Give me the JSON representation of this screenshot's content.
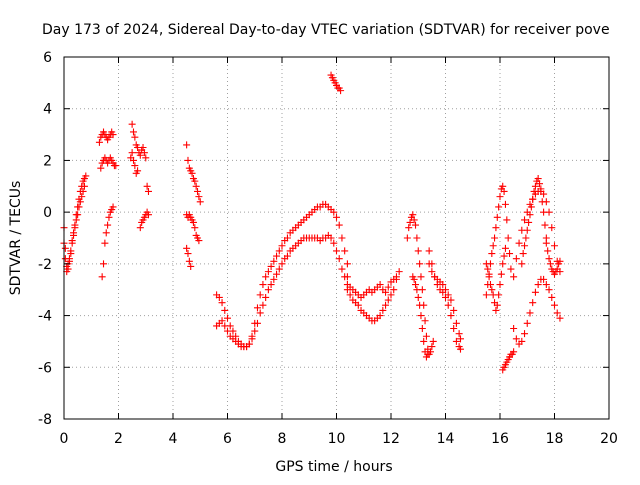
{
  "chart_data": {
    "type": "scatter",
    "title": "Day 173 of 2024, Sidereal Day-to-day VTEC variation (SDTVAR) for receiver pove",
    "xlabel": "GPS time / hours",
    "ylabel": "SDTVAR / TECUs",
    "xlim": [
      0,
      20
    ],
    "ylim": [
      -8,
      6
    ],
    "xticks": [
      0,
      2,
      4,
      6,
      8,
      10,
      12,
      14,
      16,
      18,
      20
    ],
    "xtick_labels": [
      "0",
      "2",
      "4",
      "6",
      "8",
      "10",
      "12",
      "14",
      "16",
      "18",
      "20"
    ],
    "yticks": [
      -8,
      -6,
      -4,
      -2,
      0,
      2,
      4,
      6
    ],
    "ytick_labels": [
      "-8",
      "-6",
      "-4",
      "-2",
      "0",
      "2",
      "4",
      "6"
    ],
    "grid": true,
    "marker": "+",
    "marker_color": "#ff0000",
    "series": [
      {
        "name": "segment-1",
        "x": [
          0.0,
          0.05,
          0.1,
          0.15,
          0.2,
          0.25,
          0.3,
          0.35,
          0.4,
          0.45,
          0.5,
          0.55,
          0.6,
          0.65,
          0.7,
          0.75,
          0.8
        ],
        "y": [
          -0.6,
          -1.4,
          -2.1,
          -2.2,
          -1.9,
          -1.6,
          -1.2,
          -0.8,
          -0.5,
          -0.1,
          0.2,
          0.5,
          0.8,
          1.0,
          1.2,
          1.3,
          1.4
        ]
      },
      {
        "name": "segment-2",
        "x": [
          0.0,
          0.05,
          0.1,
          0.15,
          0.2,
          0.25,
          0.3,
          0.35,
          0.4,
          0.45,
          0.5,
          0.55,
          0.6,
          0.65,
          0.7,
          0.75
        ],
        "y": [
          -1.2,
          -1.8,
          -2.3,
          -2.0,
          -1.8,
          -1.5,
          -1.1,
          -0.9,
          -0.6,
          -0.3,
          -0.1,
          0.2,
          0.4,
          0.6,
          0.8,
          1.0
        ]
      },
      {
        "name": "segment-3",
        "x": [
          1.4,
          1.45,
          1.5,
          1.55,
          1.6,
          1.65,
          1.7,
          1.75,
          1.8
        ],
        "y": [
          -2.5,
          -2.0,
          -1.2,
          -0.8,
          -0.5,
          -0.2,
          0.0,
          0.1,
          0.2
        ]
      },
      {
        "name": "segment-4",
        "x": [
          1.3,
          1.35,
          1.4,
          1.45,
          1.5,
          1.55,
          1.6,
          1.65,
          1.7,
          1.75,
          1.8
        ],
        "y": [
          2.7,
          2.9,
          3.0,
          3.1,
          3.0,
          2.9,
          2.8,
          2.9,
          3.0,
          3.1,
          3.0
        ]
      },
      {
        "name": "segment-5",
        "x": [
          1.35,
          1.4,
          1.45,
          1.5,
          1.55,
          1.6,
          1.65,
          1.7,
          1.75,
          1.8,
          1.85,
          1.9
        ],
        "y": [
          1.7,
          1.9,
          2.0,
          2.1,
          2.0,
          1.9,
          2.0,
          2.1,
          2.0,
          1.9,
          1.8,
          1.8
        ]
      },
      {
        "name": "segment-6",
        "x": [
          2.5,
          2.55,
          2.6,
          2.65,
          2.7,
          2.75,
          2.8,
          2.85,
          2.9,
          2.95,
          3.0,
          3.05,
          3.1
        ],
        "y": [
          3.4,
          3.1,
          2.9,
          2.6,
          2.5,
          2.3,
          2.2,
          2.4,
          2.5,
          2.3,
          2.1,
          1.0,
          0.8
        ]
      },
      {
        "name": "segment-7",
        "x": [
          2.45,
          2.5,
          2.55,
          2.6,
          2.65,
          2.7
        ],
        "y": [
          2.1,
          2.3,
          2.0,
          1.8,
          1.5,
          1.6
        ]
      },
      {
        "name": "segment-8",
        "x": [
          2.8,
          2.85,
          2.9,
          2.95,
          3.0,
          3.05,
          3.1
        ],
        "y": [
          -0.6,
          -0.4,
          -0.3,
          -0.2,
          -0.1,
          0.0,
          -0.1
        ]
      },
      {
        "name": "segment-9",
        "x": [
          4.5,
          4.55,
          4.6,
          4.65,
          4.7,
          4.75,
          4.8,
          4.85,
          4.9,
          4.95,
          5.0
        ],
        "y": [
          2.6,
          2.0,
          1.7,
          1.6,
          1.5,
          1.3,
          1.2,
          1.0,
          0.8,
          0.6,
          0.4
        ]
      },
      {
        "name": "segment-10",
        "x": [
          4.5,
          4.55,
          4.6,
          4.65,
          4.7,
          4.75,
          4.8,
          4.85,
          4.9,
          4.95
        ],
        "y": [
          -0.1,
          -0.2,
          -0.1,
          -0.2,
          -0.3,
          -0.4,
          -0.6,
          -0.9,
          -1.0,
          -1.1
        ]
      },
      {
        "name": "segment-11",
        "x": [
          4.5,
          4.55,
          4.6,
          4.65
        ],
        "y": [
          -1.4,
          -1.6,
          -1.9,
          -2.1
        ]
      },
      {
        "name": "segment-12",
        "x": [
          5.6,
          5.7,
          5.8,
          5.9,
          6.0,
          6.1,
          6.2,
          6.3,
          6.4,
          6.5,
          6.6,
          6.7,
          6.8,
          6.9,
          7.0,
          7.1,
          7.2,
          7.3,
          7.4,
          7.5,
          7.6,
          7.7,
          7.8,
          7.9,
          8.0,
          8.1,
          8.2,
          8.3,
          8.4,
          8.5,
          8.6,
          8.7,
          8.8,
          8.9,
          9.0,
          9.1,
          9.2,
          9.3,
          9.4,
          9.5,
          9.6,
          9.7,
          9.8,
          9.9,
          10.0,
          10.1,
          10.2,
          10.3,
          10.4
        ],
        "y": [
          -3.2,
          -3.3,
          -3.5,
          -3.8,
          -4.1,
          -4.4,
          -4.6,
          -4.8,
          -5.0,
          -5.1,
          -5.2,
          -5.2,
          -5.1,
          -4.8,
          -4.3,
          -3.7,
          -3.2,
          -2.8,
          -2.5,
          -2.3,
          -2.1,
          -1.9,
          -1.7,
          -1.5,
          -1.3,
          -1.1,
          -1.0,
          -0.8,
          -0.7,
          -0.6,
          -0.5,
          -0.4,
          -0.3,
          -0.2,
          -0.1,
          0.0,
          0.1,
          0.2,
          0.2,
          0.3,
          0.3,
          0.2,
          0.1,
          0.0,
          -0.2,
          -0.5,
          -1.0,
          -1.5,
          -2.0
        ]
      },
      {
        "name": "segment-13",
        "x": [
          5.6,
          5.7,
          5.8,
          5.9,
          6.0,
          6.1,
          6.2,
          6.3,
          6.4,
          6.5,
          6.6,
          6.7,
          6.8,
          6.9,
          7.0,
          7.1,
          7.2,
          7.3,
          7.4,
          7.5,
          7.6,
          7.7,
          7.8,
          7.9,
          8.0,
          8.1,
          8.2,
          8.3,
          8.4,
          8.5,
          8.6,
          8.7,
          8.8,
          8.9,
          9.0,
          9.1,
          9.2,
          9.3,
          9.4,
          9.5,
          9.6,
          9.7,
          9.8,
          9.9,
          10.0,
          10.1,
          10.2,
          10.3,
          10.4
        ],
        "y": [
          -4.4,
          -4.3,
          -4.2,
          -4.4,
          -4.6,
          -4.8,
          -4.9,
          -5.0,
          -5.1,
          -5.2,
          -5.2,
          -5.2,
          -5.1,
          -4.9,
          -4.6,
          -4.3,
          -3.9,
          -3.6,
          -3.3,
          -3.0,
          -2.8,
          -2.6,
          -2.4,
          -2.2,
          -2.0,
          -1.8,
          -1.7,
          -1.5,
          -1.4,
          -1.3,
          -1.2,
          -1.1,
          -1.0,
          -1.0,
          -1.0,
          -1.0,
          -1.0,
          -1.0,
          -1.1,
          -1.0,
          -1.0,
          -0.9,
          -1.0,
          -1.2,
          -1.5,
          -1.8,
          -2.2,
          -2.5,
          -2.8
        ]
      },
      {
        "name": "segment-14",
        "x": [
          10.4,
          10.5,
          10.6,
          10.7,
          10.8,
          10.9,
          11.0,
          11.1,
          11.2,
          11.3,
          11.4,
          11.5,
          11.6,
          11.7,
          11.8,
          11.9,
          12.0,
          12.1,
          12.2,
          12.3
        ],
        "y": [
          -3.0,
          -3.2,
          -3.4,
          -3.5,
          -3.6,
          -3.8,
          -3.9,
          -4.0,
          -4.1,
          -4.2,
          -4.2,
          -4.1,
          -4.0,
          -3.8,
          -3.6,
          -3.4,
          -3.2,
          -3.0,
          -2.6,
          -2.3
        ]
      },
      {
        "name": "segment-15",
        "x": [
          10.4,
          10.5,
          10.6,
          10.7,
          10.8,
          10.9,
          11.0,
          11.1,
          11.2,
          11.3,
          11.4,
          11.5,
          11.6,
          11.7,
          11.8,
          11.9,
          12.0,
          12.1,
          12.2
        ],
        "y": [
          -2.5,
          -2.9,
          -3.0,
          -3.1,
          -3.2,
          -3.3,
          -3.2,
          -3.1,
          -3.0,
          -3.1,
          -3.0,
          -2.9,
          -2.8,
          -3.0,
          -3.1,
          -2.9,
          -2.7,
          -2.6,
          -2.5
        ]
      },
      {
        "name": "segment-16",
        "x": [
          9.8,
          9.85,
          9.9,
          9.95,
          10.0,
          10.05,
          10.1,
          10.15
        ],
        "y": [
          5.3,
          5.2,
          5.1,
          5.0,
          4.9,
          4.8,
          4.8,
          4.7
        ]
      },
      {
        "name": "segment-17",
        "x": [
          12.6,
          12.65,
          12.7,
          12.75,
          12.8,
          12.85,
          12.9,
          12.95,
          13.0,
          13.05,
          13.1,
          13.15,
          13.2,
          13.25,
          13.3,
          13.35,
          13.4,
          13.45,
          13.5,
          13.55
        ],
        "y": [
          -1.0,
          -0.6,
          -0.4,
          -0.2,
          -0.1,
          -0.3,
          -0.5,
          -1.0,
          -1.5,
          -2.0,
          -2.5,
          -3.0,
          -3.6,
          -4.2,
          -4.8,
          -5.3,
          -5.5,
          -5.4,
          -5.2,
          -5.0
        ]
      },
      {
        "name": "segment-18",
        "x": [
          12.8,
          12.85,
          12.9,
          12.95,
          13.0,
          13.05,
          13.1,
          13.15,
          13.2,
          13.25,
          13.3,
          13.35
        ],
        "y": [
          -2.5,
          -2.6,
          -2.8,
          -3.0,
          -3.3,
          -3.6,
          -4.0,
          -4.5,
          -5.0,
          -5.4,
          -5.6,
          -5.5
        ]
      },
      {
        "name": "segment-19",
        "x": [
          13.4,
          13.5,
          13.6,
          13.7,
          13.8,
          13.9,
          14.0,
          14.1,
          14.2,
          14.3,
          14.4,
          14.5,
          14.55
        ],
        "y": [
          -1.5,
          -2.0,
          -2.5,
          -2.8,
          -3.0,
          -3.1,
          -3.3,
          -3.6,
          -4.0,
          -4.5,
          -5.0,
          -5.2,
          -5.3
        ]
      },
      {
        "name": "segment-20",
        "x": [
          13.4,
          13.5,
          13.6,
          13.7,
          13.8,
          13.9,
          14.0,
          14.1,
          14.2,
          14.3,
          14.4,
          14.5,
          14.55
        ],
        "y": [
          -2.0,
          -2.3,
          -2.5,
          -2.6,
          -2.7,
          -2.8,
          -3.0,
          -3.2,
          -3.4,
          -3.8,
          -4.3,
          -4.7,
          -4.9
        ]
      },
      {
        "name": "segment-21",
        "x": [
          15.5,
          15.55,
          15.6,
          15.65,
          15.7,
          15.75,
          15.8,
          15.85,
          15.9,
          15.95,
          16.0,
          16.05,
          16.1,
          16.15,
          16.2,
          16.25,
          16.3,
          16.35,
          16.4
        ],
        "y": [
          -3.2,
          -2.8,
          -2.4,
          -2.0,
          -1.6,
          -1.3,
          -1.0,
          -0.6,
          -0.2,
          0.2,
          0.6,
          0.9,
          1.0,
          0.8,
          0.3,
          -0.3,
          -1.0,
          -1.6,
          -2.2
        ]
      },
      {
        "name": "segment-22",
        "x": [
          15.5,
          15.55,
          15.6,
          15.65,
          15.7,
          15.75,
          15.8,
          15.85,
          15.9,
          15.95,
          16.0,
          16.05,
          16.1,
          16.15,
          16.2
        ],
        "y": [
          -2.0,
          -2.2,
          -2.5,
          -2.8,
          -3.0,
          -3.2,
          -3.5,
          -3.8,
          -3.6,
          -3.2,
          -2.8,
          -2.4,
          -2.0,
          -1.7,
          -1.4
        ]
      },
      {
        "name": "segment-23",
        "x": [
          16.1,
          16.15,
          16.2,
          16.25,
          16.3,
          16.35,
          16.4,
          16.45,
          16.5
        ],
        "y": [
          -6.1,
          -6.0,
          -5.9,
          -5.8,
          -5.7,
          -5.6,
          -5.5,
          -5.5,
          -5.4
        ]
      },
      {
        "name": "segment-24",
        "x": [
          16.5,
          16.6,
          16.7,
          16.8,
          16.9,
          17.0,
          17.1,
          17.2,
          17.3,
          17.4,
          17.5,
          17.6,
          17.7,
          17.8,
          17.9,
          18.0,
          18.1,
          18.2
        ],
        "y": [
          -2.5,
          -1.8,
          -1.2,
          -0.7,
          -0.3,
          0.0,
          0.3,
          0.5,
          0.7,
          0.8,
          0.9,
          0.7,
          0.4,
          0.0,
          -0.6,
          -1.3,
          -1.9,
          -2.3
        ]
      },
      {
        "name": "segment-25",
        "x": [
          16.5,
          16.6,
          16.7,
          16.8,
          16.9,
          17.0,
          17.1,
          17.2,
          17.3,
          17.4,
          17.5,
          17.6,
          17.7,
          17.8,
          17.9,
          18.0,
          18.1,
          18.2
        ],
        "y": [
          -4.5,
          -4.9,
          -5.1,
          -5.0,
          -4.7,
          -4.3,
          -3.9,
          -3.5,
          -3.1,
          -2.8,
          -2.6,
          -2.6,
          -2.8,
          -3.0,
          -3.3,
          -3.6,
          -3.9,
          -4.1
        ]
      },
      {
        "name": "segment-26",
        "x": [
          16.8,
          16.85,
          16.9,
          16.95,
          17.0,
          17.05,
          17.1,
          17.15,
          17.2,
          17.25,
          17.3,
          17.35,
          17.4,
          17.45,
          17.5,
          17.55,
          17.6,
          17.65,
          17.7
        ],
        "y": [
          -2.0,
          -1.6,
          -1.3,
          -1.0,
          -0.7,
          -0.4,
          -0.1,
          0.2,
          0.5,
          0.8,
          1.0,
          1.2,
          1.3,
          1.1,
          0.8,
          0.4,
          0.0,
          -0.5,
          -1.0
        ]
      },
      {
        "name": "segment-27",
        "x": [
          17.7,
          17.75,
          17.8,
          17.85,
          17.9,
          17.95,
          18.0,
          18.05,
          18.1,
          18.15,
          18.2
        ],
        "y": [
          -1.2,
          -1.5,
          -1.8,
          -2.0,
          -2.2,
          -2.3,
          -2.4,
          -2.3,
          -2.2,
          -2.0,
          -1.9
        ]
      }
    ]
  }
}
